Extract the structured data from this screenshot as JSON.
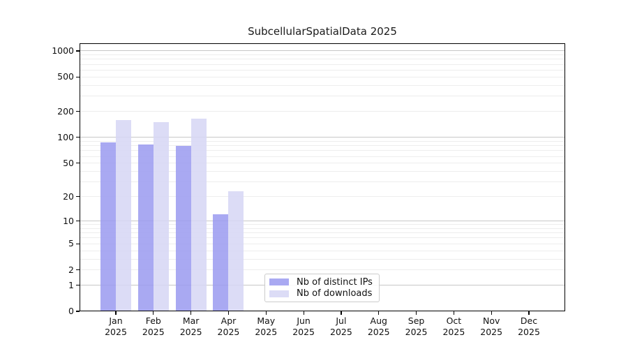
{
  "title": "SubcellularSpatialData 2025",
  "chart_data": {
    "type": "bar",
    "title": "SubcellularSpatialData 2025",
    "categories": [
      "Jan",
      "Feb",
      "Mar",
      "Apr",
      "May",
      "Jun",
      "Jul",
      "Aug",
      "Sep",
      "Oct",
      "Nov",
      "Dec"
    ],
    "year": "2025",
    "series": [
      {
        "name": "Nb of distinct IPs",
        "color": "#a9a9f2",
        "values": [
          88,
          82,
          80,
          12,
          0,
          0,
          0,
          0,
          0,
          0,
          0,
          0
        ]
      },
      {
        "name": "Nb of downloads",
        "color": "#dcdcf6",
        "values": [
          158,
          150,
          165,
          23,
          0,
          0,
          0,
          0,
          0,
          0,
          0,
          0
        ]
      }
    ],
    "yscale": "log1p",
    "ylim": [
      0,
      1225
    ],
    "yticks": [
      0,
      1,
      2,
      5,
      10,
      20,
      50,
      100,
      200,
      500,
      1000
    ],
    "major_gridlines": [
      1,
      10,
      100,
      1000
    ],
    "minor_gridline_decades": [
      1,
      10,
      100
    ],
    "grid": true,
    "legend_position": "lower center"
  }
}
